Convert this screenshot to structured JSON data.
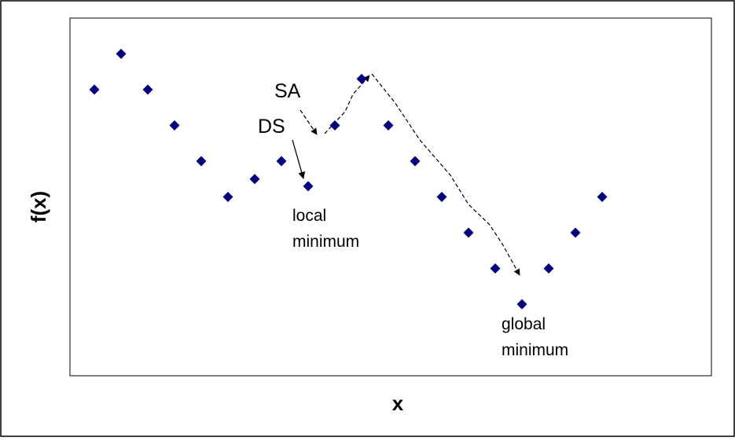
{
  "chart_data": {
    "type": "scatter",
    "title": "",
    "xlabel": "x",
    "ylabel": "f(x)",
    "grid": false,
    "legend": false,
    "marker_color": "#000080",
    "series": [
      {
        "x": [
          1,
          2,
          3,
          4,
          5,
          6,
          7,
          8,
          9,
          10,
          11,
          12,
          13,
          14,
          15,
          16,
          17,
          18,
          19,
          20
        ],
        "y": [
          9,
          10,
          9,
          8,
          7,
          6,
          6.5,
          7,
          6.3,
          8,
          9.3,
          8,
          7,
          6,
          5,
          4,
          3,
          4,
          5,
          6
        ]
      }
    ],
    "annotations": {
      "sa_label": "SA",
      "ds_label": "DS",
      "local_min_line1": "local",
      "local_min_line2": "minimum",
      "global_min_line1": "global",
      "global_min_line2": "minimum"
    }
  }
}
